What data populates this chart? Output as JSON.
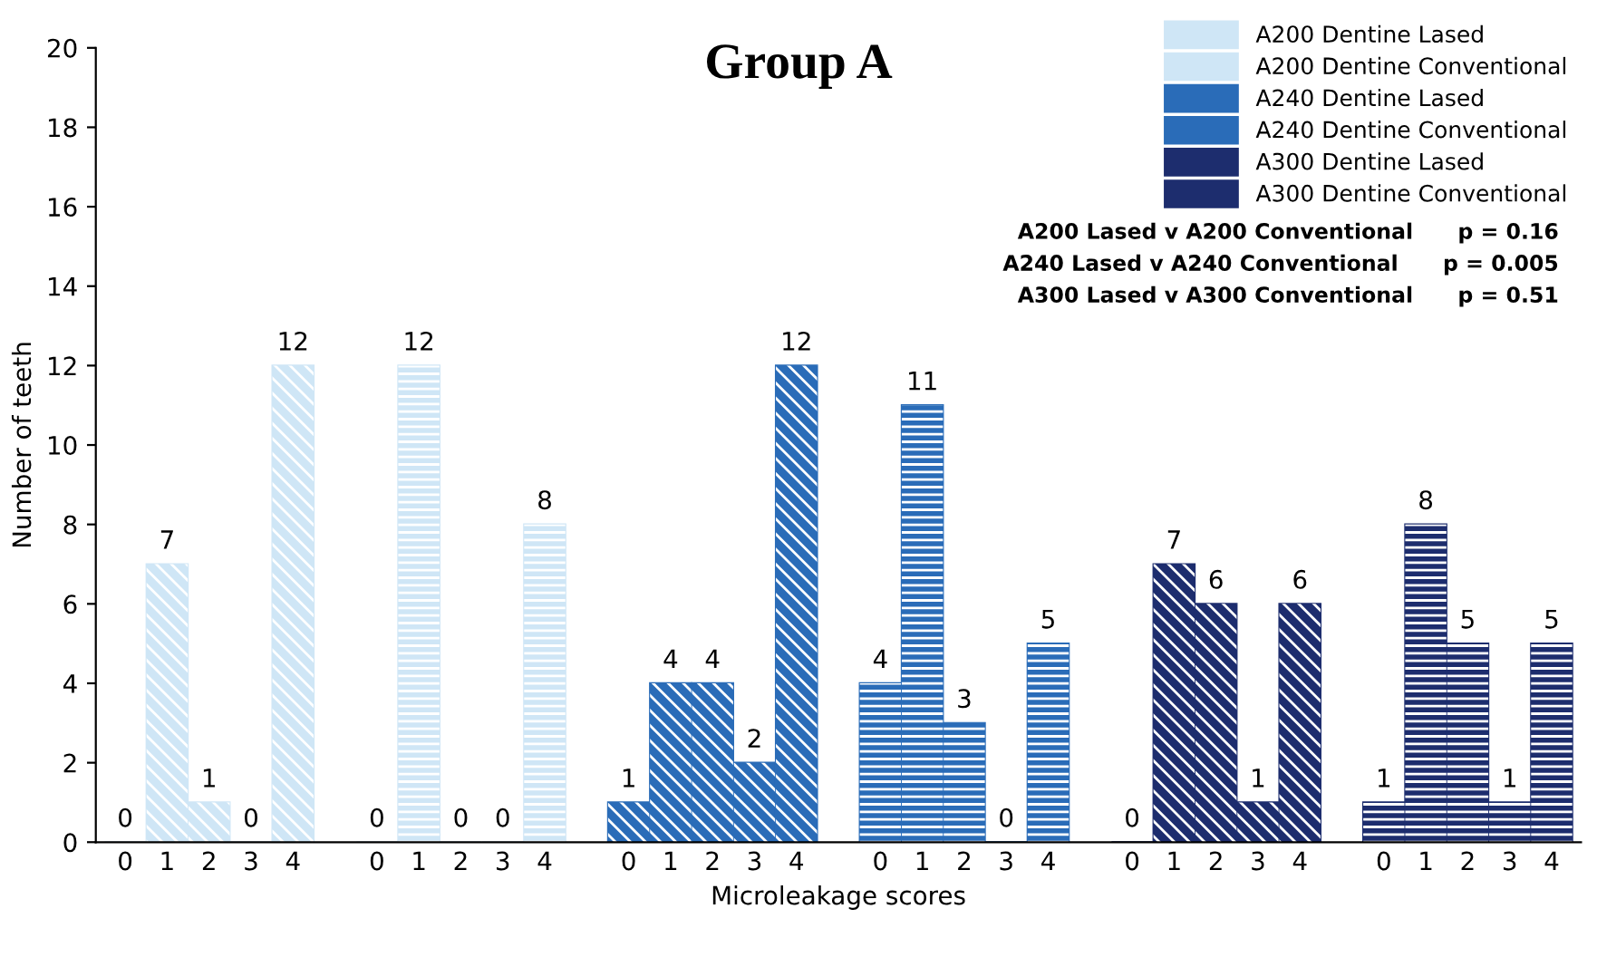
{
  "chart_data": {
    "type": "bar",
    "title": "Group A",
    "xlabel": "Microleakage scores",
    "ylabel": "Number of teeth",
    "categories": [
      "0",
      "1",
      "2",
      "3",
      "4",
      null,
      "0",
      "1",
      "2",
      "3",
      "4",
      null,
      "0",
      "1",
      "2",
      "3",
      "4",
      null,
      "0",
      "1",
      "2",
      "3",
      "4",
      null,
      "0",
      "1",
      "2",
      "3",
      "4",
      null,
      "0",
      "1",
      "2",
      "3",
      "4"
    ],
    "series": [
      {
        "name": "A200 Dentine Lased",
        "color": "#cfe6f6",
        "values": [
          0,
          7,
          1,
          0,
          12,
          null,
          null,
          null,
          null,
          null,
          null,
          null,
          null,
          null,
          null,
          null,
          null,
          null,
          null,
          null,
          null,
          null,
          null,
          null,
          null,
          null,
          null,
          null,
          null,
          null,
          null,
          null,
          null,
          null,
          null
        ]
      },
      {
        "name": "A200 Dentine Conventional",
        "color": "#cfe6f6",
        "values": [
          null,
          null,
          null,
          null,
          null,
          null,
          0,
          12,
          0,
          0,
          8,
          null,
          null,
          null,
          null,
          null,
          null,
          null,
          null,
          null,
          null,
          null,
          null,
          null,
          null,
          null,
          null,
          null,
          null,
          null,
          null,
          null,
          null,
          null,
          null
        ]
      },
      {
        "name": "A240 Dentine Lased",
        "color": "#2a6cb8",
        "values": [
          null,
          null,
          null,
          null,
          null,
          null,
          null,
          null,
          null,
          null,
          null,
          null,
          1,
          4,
          4,
          2,
          12,
          null,
          null,
          null,
          null,
          null,
          null,
          null,
          null,
          null,
          null,
          null,
          null,
          null,
          null,
          null,
          null,
          null,
          null
        ]
      },
      {
        "name": "A240 Dentine Conventional",
        "color": "#2a6cb8",
        "values": [
          null,
          null,
          null,
          null,
          null,
          null,
          null,
          null,
          null,
          null,
          null,
          null,
          null,
          null,
          null,
          null,
          null,
          null,
          4,
          11,
          3,
          0,
          5,
          null,
          null,
          null,
          null,
          null,
          null,
          null,
          null,
          null,
          null,
          null,
          null
        ]
      },
      {
        "name": "A300 Dentine Lased",
        "color": "#1d2d6e",
        "values": [
          null,
          null,
          null,
          null,
          null,
          null,
          null,
          null,
          null,
          null,
          null,
          null,
          null,
          null,
          null,
          null,
          null,
          null,
          null,
          null,
          null,
          null,
          null,
          null,
          0,
          7,
          6,
          1,
          6,
          null,
          null,
          null,
          null,
          null,
          null
        ]
      },
      {
        "name": "A300 Dentine Conventional",
        "color": "#1d2d6e",
        "values": [
          null,
          null,
          null,
          null,
          null,
          null,
          null,
          null,
          null,
          null,
          null,
          null,
          null,
          null,
          null,
          null,
          null,
          null,
          null,
          null,
          null,
          null,
          null,
          null,
          null,
          null,
          null,
          null,
          null,
          null,
          1,
          8,
          5,
          1,
          5
        ]
      }
    ],
    "ylim": [
      0,
      20
    ],
    "yticks": [
      0,
      2,
      4,
      6,
      8,
      10,
      12,
      14,
      16,
      18,
      20
    ],
    "data_labels": true,
    "legend": "top right",
    "grid": false,
    "annotations": [
      "A200 Lased v A200 Conventional      p = 0.16",
      "A240 Lased v A240 Conventional      p = 0.005",
      "A300 Lased v A300 Conventional      p = 0.51"
    ]
  }
}
